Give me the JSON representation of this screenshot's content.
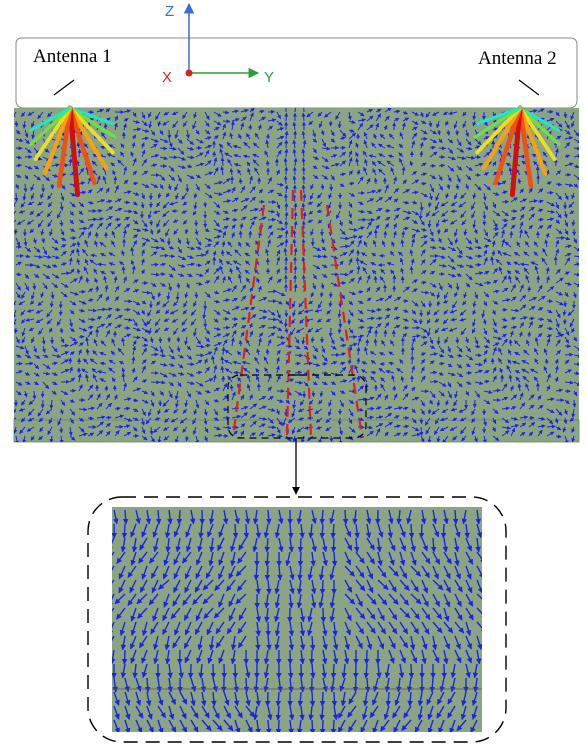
{
  "labels": {
    "antenna1": "Antenna 1",
    "antenna2": "Antenna 2"
  },
  "axes": {
    "z": "Z",
    "x": "X",
    "y": "Y"
  },
  "colors": {
    "medium": "#8ba582",
    "field_arrows": "#1a22ee",
    "guide_lines": "#e02020",
    "axis_z": "#3a6fd1",
    "axis_x": "#e02020",
    "axis_y": "#2e9a3a",
    "antenna_beam": [
      "#d01010",
      "#f05010",
      "#f8a010",
      "#e8e020",
      "#70e040",
      "#20e8c0"
    ]
  }
}
